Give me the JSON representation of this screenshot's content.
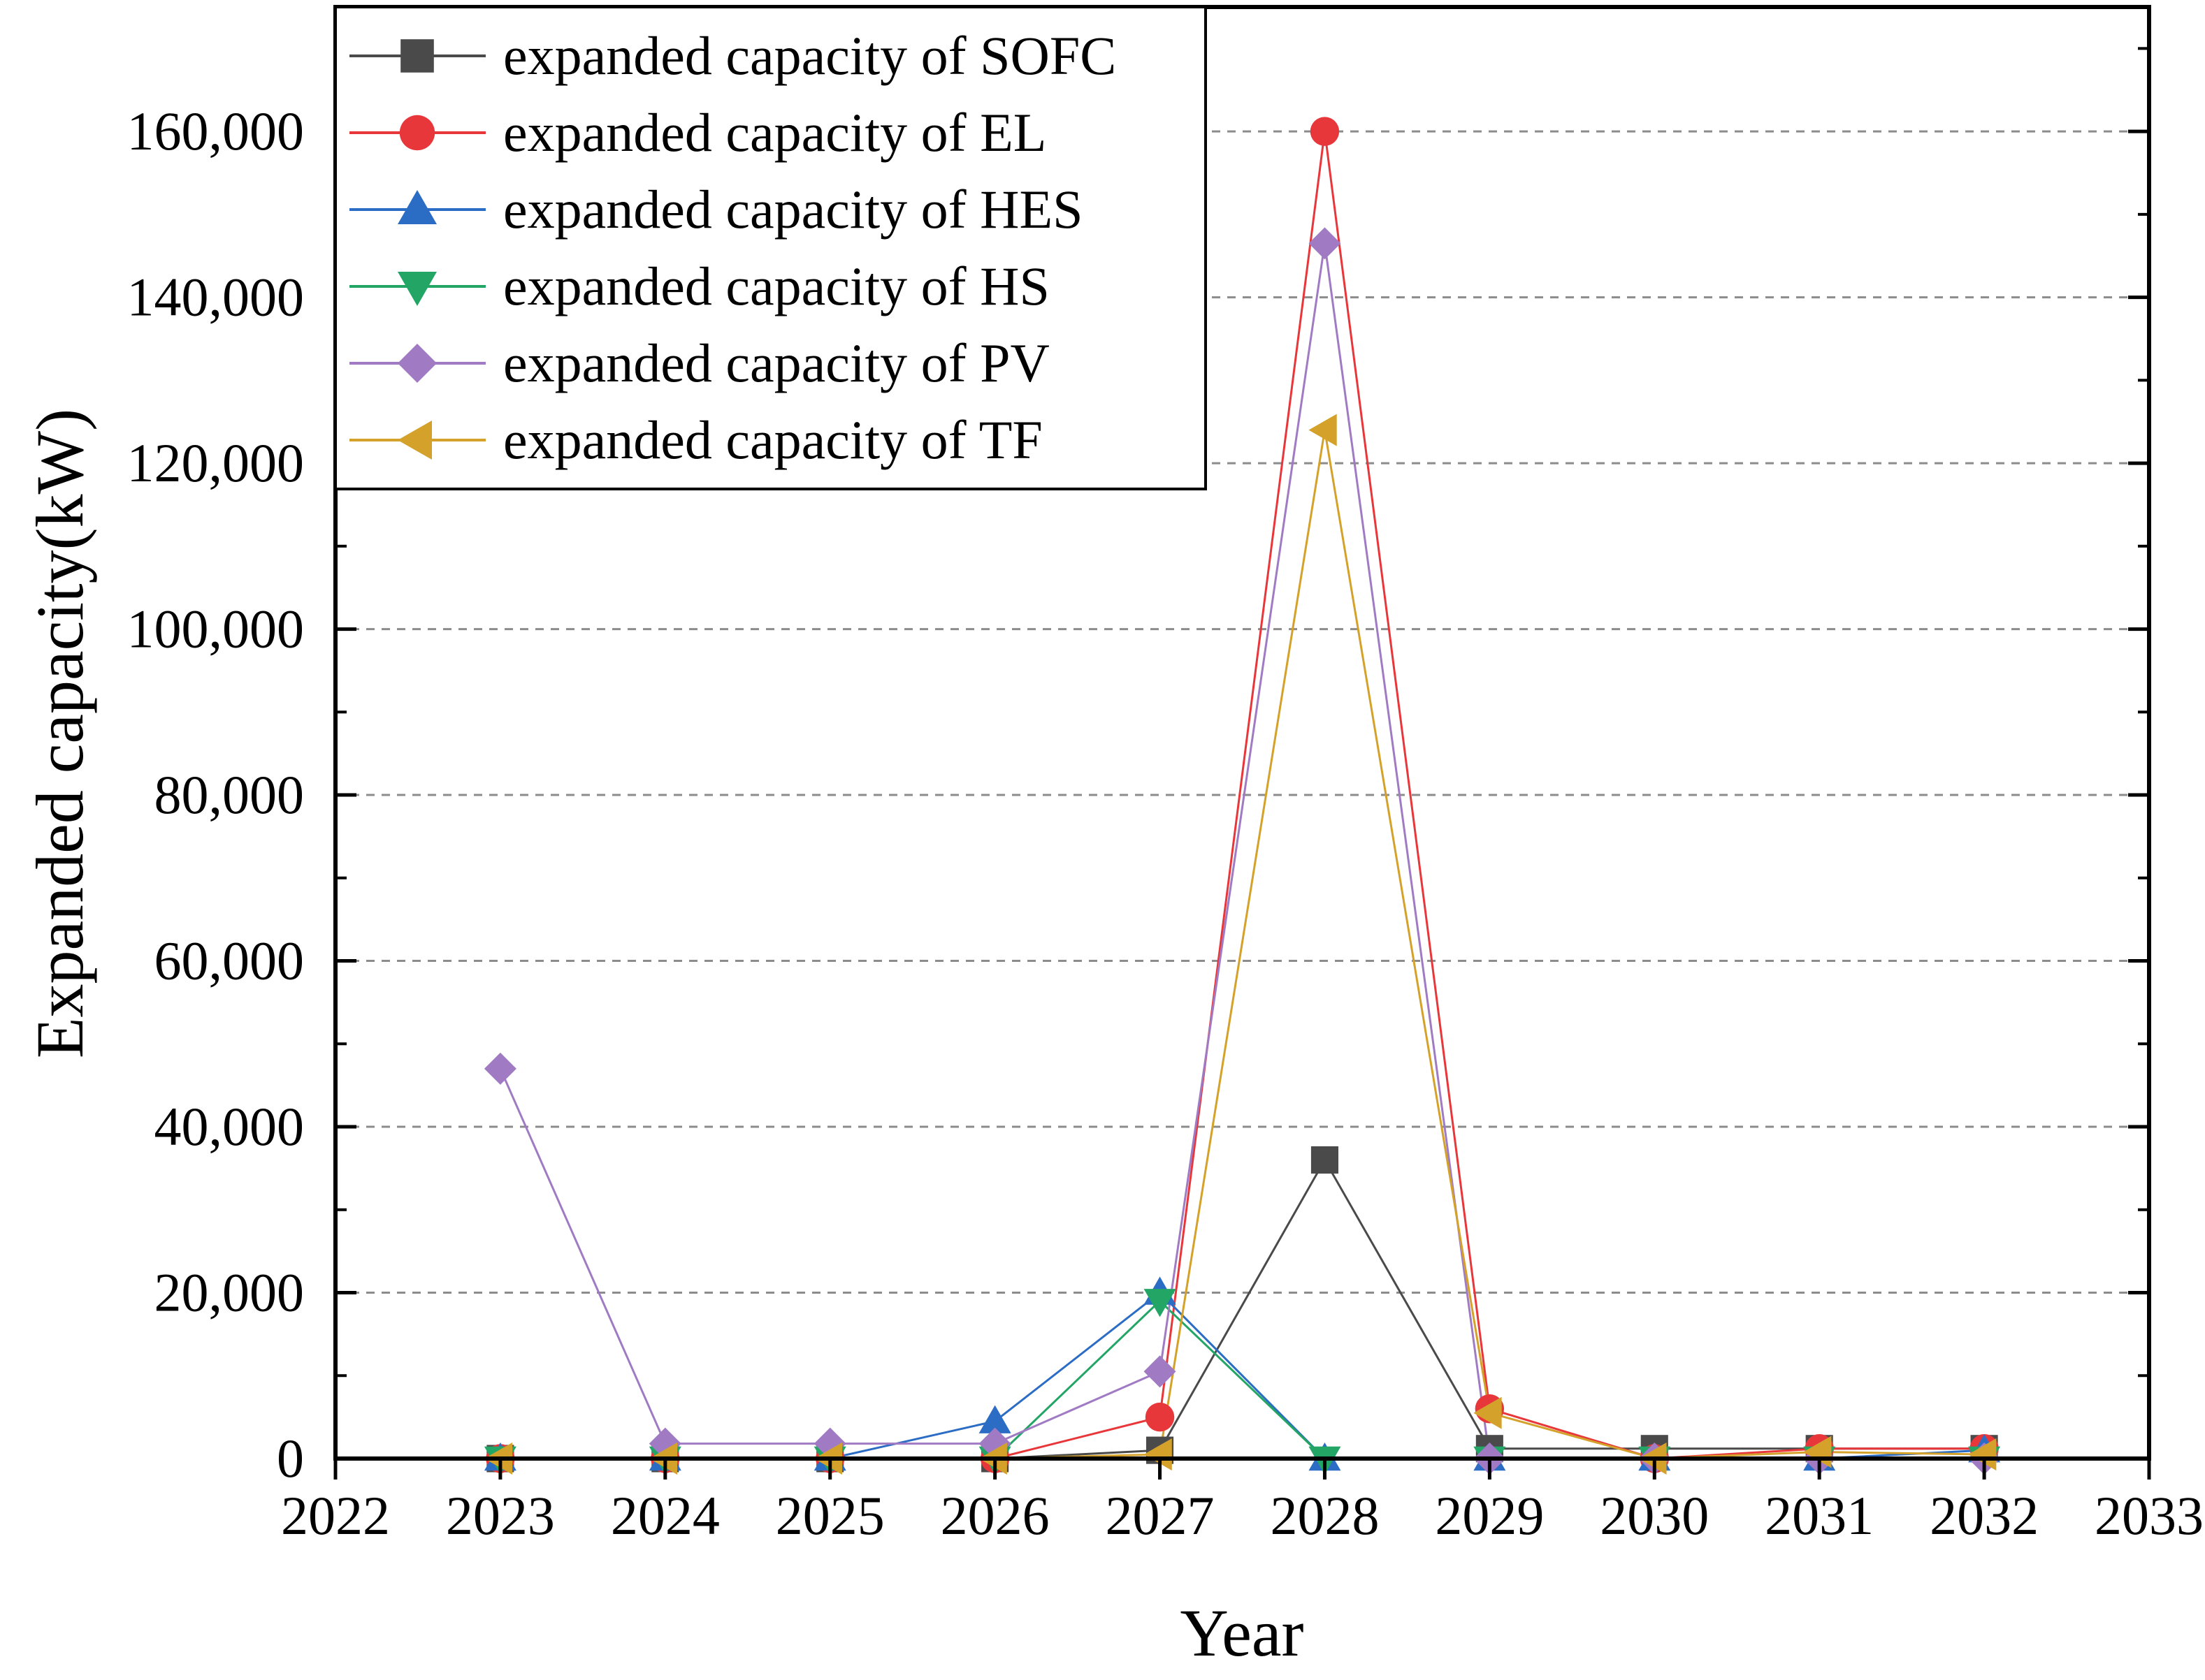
{
  "chart_data": {
    "type": "line",
    "xlabel": "Year",
    "ylabel": "Expanded capacity(kW)",
    "xlim": [
      2022,
      2033
    ],
    "ylim": [
      0,
      175000
    ],
    "x_ticks": [
      2022,
      2023,
      2024,
      2025,
      2026,
      2027,
      2028,
      2029,
      2030,
      2031,
      2032,
      2033
    ],
    "x_tick_labels": [
      "2022",
      "2023",
      "2024",
      "2025",
      "2026",
      "2027",
      "2028",
      "2029",
      "2030",
      "2031",
      "2032",
      "2033"
    ],
    "y_ticks": [
      0,
      20000,
      40000,
      60000,
      80000,
      100000,
      120000,
      140000,
      160000
    ],
    "y_tick_labels": [
      "0",
      "20,000",
      "40,000",
      "60,000",
      "80,000",
      "100,000",
      "120,000",
      "140,000",
      "160,000"
    ],
    "grid": "horizontal-dashed",
    "legend_position": "top-left",
    "x": [
      2023,
      2024,
      2025,
      2026,
      2027,
      2028,
      2029,
      2030,
      2031,
      2032
    ],
    "series": [
      {
        "name": "expanded capacity of SOFC",
        "color": "#4a4a4a",
        "marker": "square",
        "values": [
          0,
          0,
          0,
          0,
          1000,
          36000,
          1200,
          1200,
          1200,
          1200
        ]
      },
      {
        "name": "expanded capacity of EL",
        "color": "#e8373a",
        "marker": "circle",
        "values": [
          0,
          0,
          0,
          0,
          5000,
          160000,
          6000,
          0,
          1200,
          1200
        ]
      },
      {
        "name": "expanded capacity of HES",
        "color": "#2b6cc4",
        "marker": "triangle-up",
        "values": [
          0,
          0,
          0,
          4500,
          20000,
          0,
          0,
          0,
          0,
          1000
        ]
      },
      {
        "name": "expanded capacity of HS",
        "color": "#22a565",
        "marker": "triangle-down",
        "values": [
          0,
          0,
          0,
          0,
          19000,
          0,
          0,
          0,
          0,
          0
        ]
      },
      {
        "name": "expanded capacity of PV",
        "color": "#a07bc4",
        "marker": "diamond",
        "values": [
          47000,
          1800,
          1800,
          1800,
          10500,
          146500,
          0,
          0,
          0,
          0
        ]
      },
      {
        "name": "expanded capacity of TF",
        "color": "#d4a22a",
        "marker": "triangle-left",
        "values": [
          0,
          0,
          0,
          0,
          500,
          124000,
          5500,
          0,
          800,
          500
        ]
      }
    ]
  }
}
